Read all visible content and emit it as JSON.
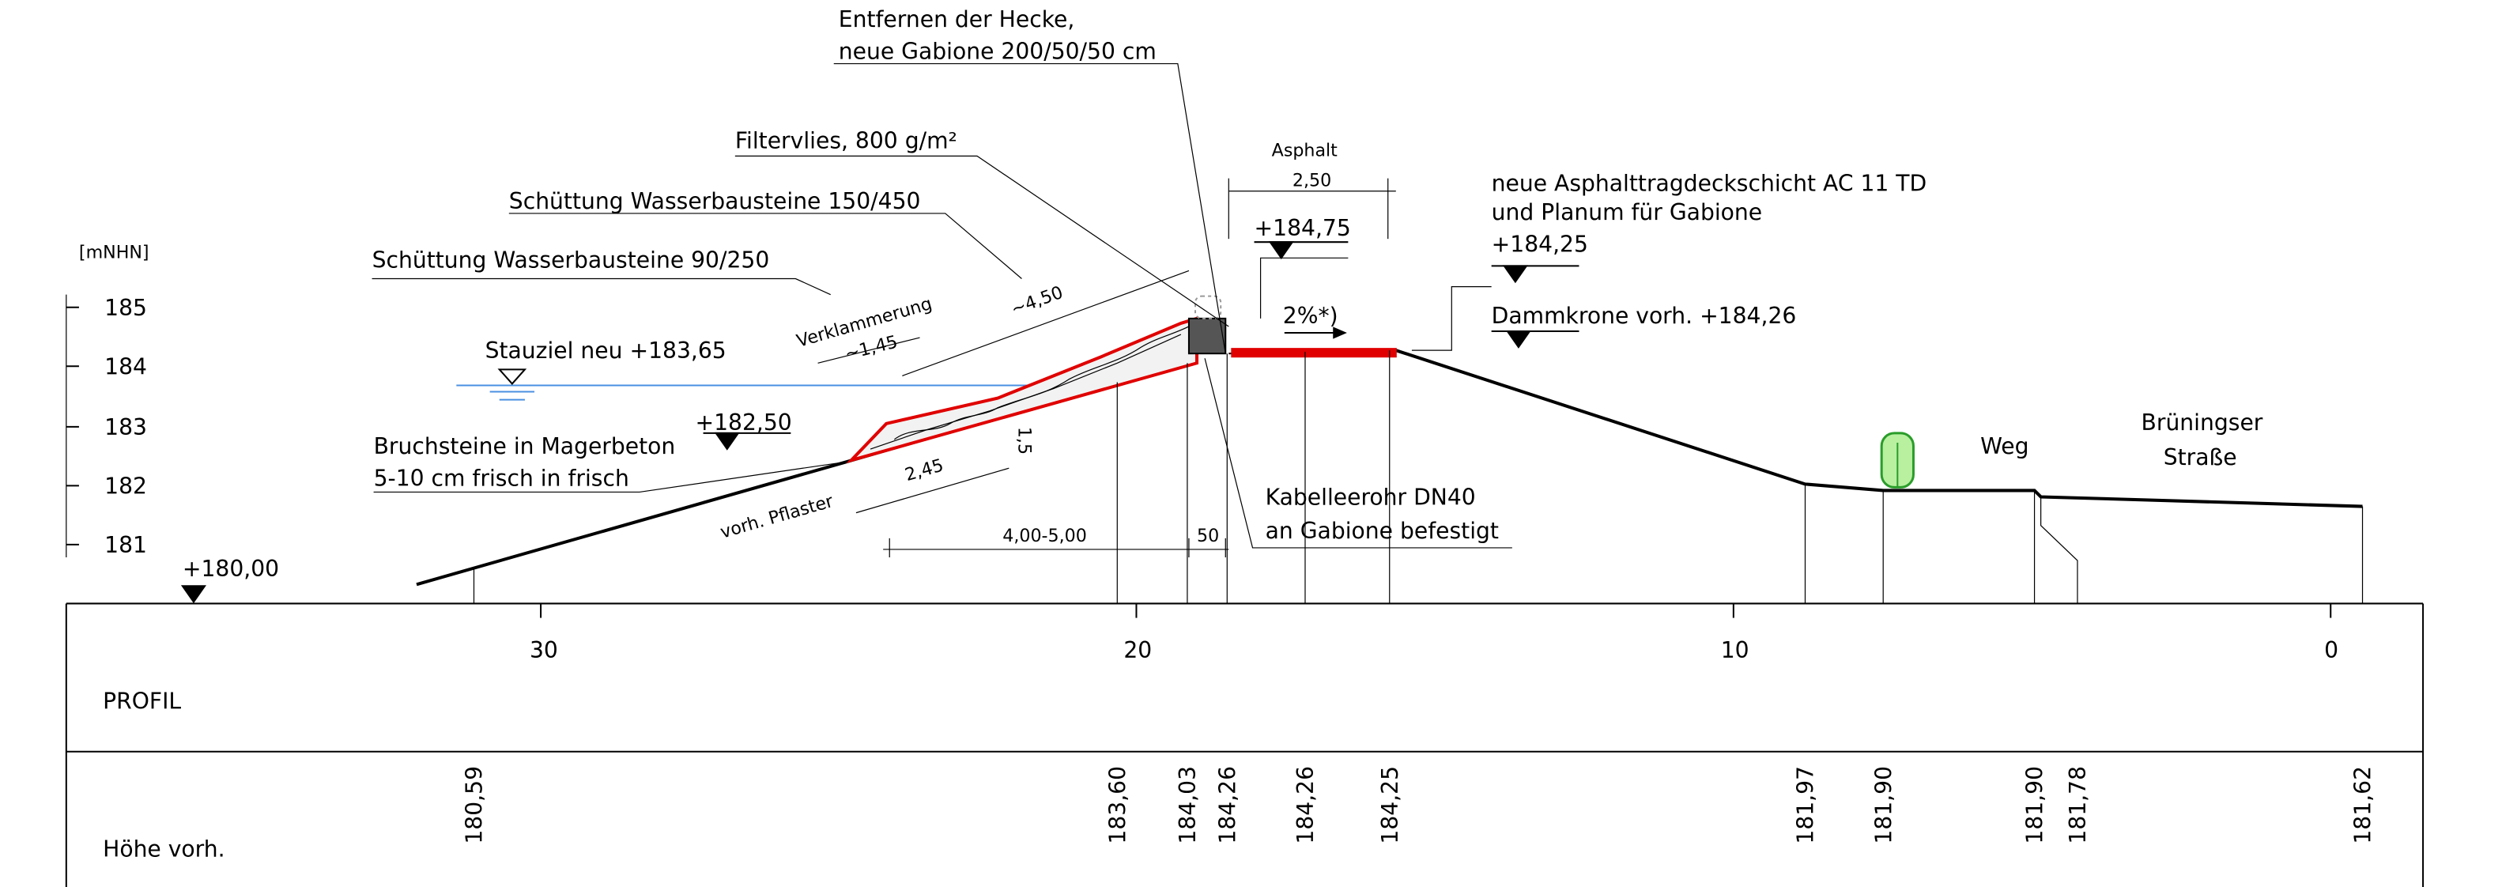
{
  "annotations": {
    "hecke_1": "Entfernen der Hecke,",
    "hecke_2": "neue Gabione 200/50/50 cm",
    "filtervlies": "Filtervlies, 800 g/m²",
    "schuettung_150": "Schüttung Wasserbausteine 150/450",
    "schuettung_90": "Schüttung Wasserbausteine 90/250",
    "stauziel": "Stauziel neu +183,65",
    "level_18250": "+182,50",
    "bruchsteine_1": "Bruchsteine in Magerbeton",
    "bruchsteine_2": "5-10 cm frisch in frisch",
    "level_18000": "+180,00",
    "verklammerung": "Verklammerung",
    "dim_145": "~1,45",
    "dim_450": "~4,50",
    "dim_15": "1,5",
    "dim_245": "2,45",
    "pflaster": "vorh. Pflaster",
    "dim_400_500": "4,00-5,00",
    "dim_50": "50",
    "asphalt": "Asphalt",
    "dim_250": "2,50",
    "level_18475": "+184,75",
    "gefaelle": "2%*)",
    "asphalt_1": "neue Asphalttragdeckschicht AC 11 TD",
    "asphalt_2": "und Planum für Gabione",
    "level_18425": "+184,25",
    "dammkrone": "Dammkrone vorh. +184,26",
    "kabel_1": "Kabelleerohr DN40",
    "kabel_2": "an Gabione befestigt",
    "weg": "Weg",
    "strasse_1": "Brüningser",
    "strasse_2": "Straße"
  },
  "y_axis": {
    "unit": "[mNHN]",
    "ticks": [
      "185",
      "184",
      "183",
      "182",
      "181"
    ]
  },
  "profile": {
    "label": "PROFIL",
    "ticks": [
      "30",
      "20",
      "10",
      "0"
    ]
  },
  "heights": {
    "label": "Höhe vorh.",
    "values": [
      "180,59",
      "183,60",
      "184,03",
      "184,26",
      "184,26",
      "184,25",
      "181,97",
      "181,90",
      "181,90",
      "181,78",
      "181,62"
    ]
  }
}
